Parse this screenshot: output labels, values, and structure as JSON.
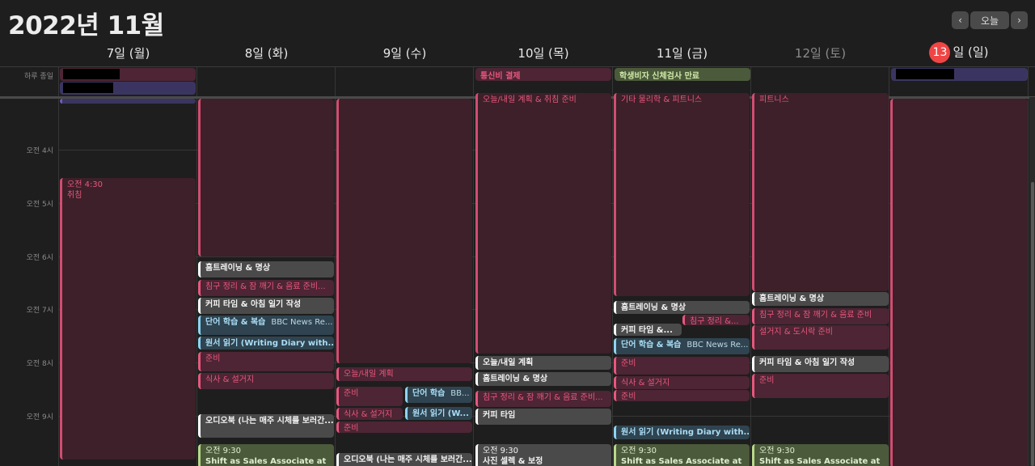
{
  "header": {
    "title": "2022년 11월",
    "prev_label": "‹",
    "today_label": "오늘",
    "next_label": "›"
  },
  "days": [
    {
      "label": "7일 (월)"
    },
    {
      "label": "8일 (화)"
    },
    {
      "label": "9일 (수)"
    },
    {
      "label": "10일 (목)"
    },
    {
      "label": "11일 (금)"
    },
    {
      "label": "12일 (토)"
    },
    {
      "number": "13",
      "rest": "일 (일)"
    }
  ],
  "allday": {
    "label": "하루 종일",
    "events": [
      "통신비 결제",
      "학생비자 신체검사 만료"
    ]
  },
  "hours": [
    "오전 4시",
    "오전 5시",
    "오전 6시",
    "오전 7시",
    "오전 8시",
    "오전 9시"
  ],
  "events": {
    "mon_sleep_time": "오전 4:30",
    "mon_sleep_title": "취침",
    "tue_1": "홈트레이닝 & 명상",
    "tue_2": "침구 정리 & 잠 깨기 & 음료 준비...",
    "tue_3": "커피 타임 & 아침 일기 작성",
    "tue_4": "단어 학습 & 복습",
    "tue_4_sub": "BBC News Re...",
    "tue_5": "원서 읽기 (Writing Diary with...",
    "tue_6": "준비",
    "tue_7": "식사 & 설거지",
    "tue_8": "오디오북 (나는 매주 시체를 보러간...",
    "tue_9_time": "오전 9:30",
    "tue_9_title": "Shift as Sales Associate at",
    "wed_1": "오늘/내일 계획",
    "wed_2": "준비",
    "wed_3": "단어 학습",
    "wed_3_sub": "BB...",
    "wed_4": "식사 & 설거지",
    "wed_5": "원서 읽기 (W...",
    "wed_6": "준비",
    "wed_7": "오디오북 (나는 매주 시체를 보러간...",
    "thu_top": "오늘/내일 계획 & 취침 준비",
    "thu_1": "오늘/내일 계획",
    "thu_2": "홈트레이닝 & 명상",
    "thu_3": "침구 정리 & 잠 깨기 & 음료 준비...",
    "thu_4": "커피 타임",
    "thu_5_time": "오전 9:30",
    "thu_5_title": "사진 셀렉 & 보정",
    "fri_top": "기타 물리학 & 피트니스",
    "fri_1": "홈트레이닝 & 명상",
    "fri_2": "침구 정리 &...",
    "fri_3": "커피 타임 &...",
    "fri_4": "단어 학습 & 복습",
    "fri_4_sub": "BBC News Re...",
    "fri_5": "준비",
    "fri_6": "식사 & 설거지",
    "fri_7": "준비",
    "fri_8": "원서 읽기 (Writing Diary with...",
    "fri_9_time": "오전 9:30",
    "fri_9_title": "Shift as Sales Associate at",
    "sat_top": "피트니스",
    "sat_1": "홈트레이닝 & 명상",
    "sat_2": "침구 정리 & 잠 깨기 & 음료 준비",
    "sat_3": "설거지 & 도시락 준비",
    "sat_4": "커피 타임 & 아침 일기 작성",
    "sat_5": "준비",
    "sat_6_time": "오전 9:30",
    "sat_6_title": "Shift as Sales Associate at"
  },
  "colors": {
    "background": "#1e1e1e",
    "today_badge": "#f04545",
    "pink_event": "#e8577e",
    "blue_event": "#8fd3f2",
    "green_event": "#b9d88a",
    "purple_event": "#3a3560"
  }
}
